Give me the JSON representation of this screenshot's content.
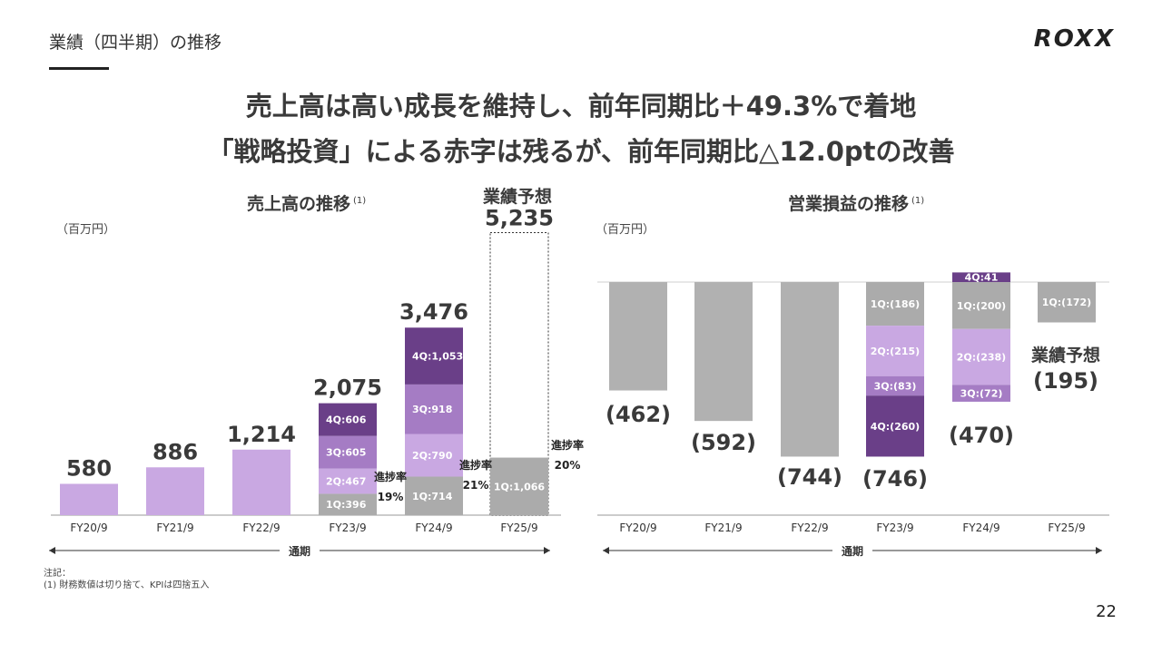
{
  "page": {
    "section_title": "業績（四半期）の推移",
    "logo": "ROXX",
    "headline_1": "売上高は高い成長を維持し、前年同期比＋49.3%で着地",
    "headline_2": "「戦略投資」による赤字は残るが、前年同期比△12.0ptの改善",
    "footnote_1": "注記：",
    "footnote_2": "(1) 財務数値は切り捨て、KPIは四捨五入",
    "page_number": "22"
  },
  "chart_data": [
    {
      "type": "bar",
      "title": "売上高の推移",
      "title_note": "(1)",
      "unit": "（百万円）",
      "span_label": "通期",
      "categories": [
        "FY20/9",
        "FY21/9",
        "FY22/9",
        "FY23/9",
        "FY24/9",
        "FY25/9"
      ],
      "totals": [
        "580",
        "886",
        "1,214",
        "2,075",
        "3,476",
        "5,235"
      ],
      "total_values": [
        580,
        886,
        1214,
        2075,
        3476,
        5235
      ],
      "forecast_label": "業績予想",
      "series": [
        {
          "name": "1Q",
          "values": [
            null,
            null,
            null,
            396,
            714,
            1066
          ],
          "labels": [
            "",
            "",
            "",
            "1Q:396",
            "1Q:714",
            "1Q:1,066"
          ]
        },
        {
          "name": "2Q",
          "values": [
            null,
            null,
            null,
            467,
            790,
            null
          ],
          "labels": [
            "",
            "",
            "",
            "2Q:467",
            "2Q:790",
            ""
          ]
        },
        {
          "name": "3Q",
          "values": [
            null,
            null,
            null,
            605,
            918,
            null
          ],
          "labels": [
            "",
            "",
            "",
            "3Q:605",
            "3Q:918",
            ""
          ]
        },
        {
          "name": "4Q",
          "values": [
            null,
            null,
            null,
            606,
            1053,
            null
          ],
          "labels": [
            "",
            "",
            "",
            "4Q:606",
            "4Q:1,053",
            ""
          ]
        }
      ],
      "progress": [
        {
          "category": "FY23/9",
          "label": "進捗率",
          "value": "19%"
        },
        {
          "category": "FY24/9",
          "label": "進捗率",
          "value": "21%"
        },
        {
          "category": "FY25/9",
          "label": "進捗率",
          "value": "20%"
        }
      ],
      "colors": {
        "annual": "#c9a8e2",
        "q1": "#ababab",
        "q2": "#c9a8e2",
        "q3": "#a57cc4",
        "q4": "#6a3f88",
        "forecast_border": "#333333",
        "axis": "#999999"
      }
    },
    {
      "type": "bar",
      "title": "営業損益の推移",
      "title_note": "(1)",
      "unit": "（百万円）",
      "span_label": "通期",
      "categories": [
        "FY20/9",
        "FY21/9",
        "FY22/9",
        "FY23/9",
        "FY24/9",
        "FY25/9"
      ],
      "totals": [
        "(462)",
        "(592)",
        "(744)",
        "(746)",
        "(470)",
        "(195)"
      ],
      "total_values": [
        -462,
        -592,
        -744,
        -746,
        -470,
        -195
      ],
      "forecast_label": "業績予想",
      "series": [
        {
          "name": "1Q",
          "values": [
            null,
            null,
            null,
            -186,
            -200,
            -172
          ],
          "labels": [
            "",
            "",
            "",
            "1Q:(186)",
            "1Q:(200)",
            "1Q:(172)"
          ]
        },
        {
          "name": "2Q",
          "values": [
            null,
            null,
            null,
            -215,
            -238,
            null
          ],
          "labels": [
            "",
            "",
            "",
            "2Q:(215)",
            "2Q:(238)",
            ""
          ]
        },
        {
          "name": "3Q",
          "values": [
            null,
            null,
            null,
            -83,
            -72,
            null
          ],
          "labels": [
            "",
            "",
            "",
            "3Q:(83)",
            "3Q:(72)",
            ""
          ]
        },
        {
          "name": "4Q",
          "values": [
            null,
            null,
            null,
            -260,
            41,
            null
          ],
          "labels": [
            "",
            "",
            "",
            "4Q:(260)",
            "4Q:41",
            ""
          ]
        }
      ],
      "colors": {
        "annual": "#b1b1b1",
        "q1": "#ababab",
        "q2": "#c9a8e2",
        "q3": "#a57cc4",
        "q4": "#6a3f88",
        "axis": "#999999"
      }
    }
  ]
}
